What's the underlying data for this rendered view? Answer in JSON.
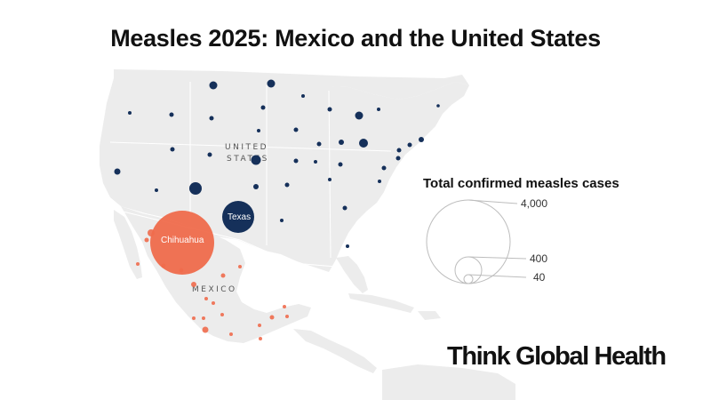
{
  "title": "Measles 2025: Mexico and the United States",
  "country_labels": {
    "us_line1": "UNITED",
    "us_line2": "STATES",
    "mexico": "MEXICO"
  },
  "bubble_labels": {
    "texas": "Texas",
    "chihuahua": "Chihuahua"
  },
  "legend": {
    "title": "Total confirmed measles cases",
    "values": [
      "4,000",
      "400",
      "40"
    ]
  },
  "brand": "Think Global Health",
  "colors": {
    "united_states": "#15305a",
    "mexico": "#ef6b4c",
    "land": "#ececec",
    "background": "#ffffff"
  }
}
